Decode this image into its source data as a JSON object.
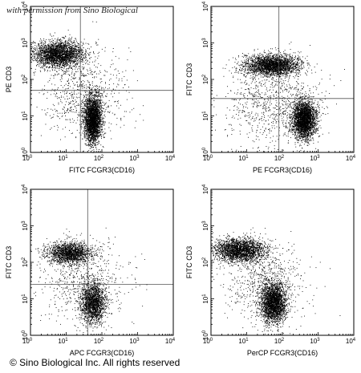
{
  "watermark": "with permission from Sino Biological",
  "copyright": "© Sino Biological Inc. All rights reserved",
  "chart_data": [
    {
      "type": "scatter",
      "xlabel": "FITC FCGR3(CD16)",
      "ylabel": "PE CD3",
      "xlim": [
        1,
        10000
      ],
      "ylim": [
        1,
        10000
      ],
      "log": true,
      "ticks": [
        {
          "b": "10",
          "e": "0"
        },
        {
          "b": "10",
          "e": "1"
        },
        {
          "b": "10",
          "e": "2"
        },
        {
          "b": "10",
          "e": "3"
        },
        {
          "b": "10",
          "e": "4"
        }
      ],
      "gate": {
        "x": 25,
        "y": 50
      },
      "populations": [
        {
          "x": 6,
          "y": 500,
          "spread_x": 0.35,
          "spread_y": 0.18,
          "n": 2600
        },
        {
          "x": 55,
          "y": 8,
          "spread_x": 0.12,
          "spread_y": 0.32,
          "n": 2900
        },
        {
          "x": 30,
          "y": 40,
          "spread_x": 0.6,
          "spread_y": 0.6,
          "n": 700
        }
      ]
    },
    {
      "type": "scatter",
      "xlabel": "PE FCGR3(CD16)",
      "ylabel": "FITC CD3",
      "xlim": [
        1,
        10000
      ],
      "ylim": [
        1,
        10000
      ],
      "log": true,
      "ticks": [
        {
          "b": "10",
          "e": "0"
        },
        {
          "b": "10",
          "e": "1"
        },
        {
          "b": "10",
          "e": "2"
        },
        {
          "b": "10",
          "e": "3"
        },
        {
          "b": "10",
          "e": "4"
        }
      ],
      "gate": {
        "x": 80,
        "y": 30
      },
      "populations": [
        {
          "x": 50,
          "y": 250,
          "spread_x": 0.38,
          "spread_y": 0.14,
          "n": 2500
        },
        {
          "x": 400,
          "y": 8,
          "spread_x": 0.16,
          "spread_y": 0.26,
          "n": 2800
        },
        {
          "x": 60,
          "y": 20,
          "spread_x": 0.7,
          "spread_y": 0.55,
          "n": 900
        }
      ]
    },
    {
      "type": "scatter",
      "xlabel": "APC FCGR3(CD16)",
      "ylabel": "FITC CD3",
      "xlim": [
        1,
        10000
      ],
      "ylim": [
        1,
        10000
      ],
      "log": true,
      "ticks": [
        {
          "b": "10",
          "e": "0"
        },
        {
          "b": "10",
          "e": "1"
        },
        {
          "b": "10",
          "e": "2"
        },
        {
          "b": "10",
          "e": "3"
        },
        {
          "b": "10",
          "e": "4"
        }
      ],
      "gate": {
        "x": 40,
        "y": 25
      },
      "populations": [
        {
          "x": 12,
          "y": 180,
          "spread_x": 0.32,
          "spread_y": 0.15,
          "n": 1700
        },
        {
          "x": 55,
          "y": 8,
          "spread_x": 0.17,
          "spread_y": 0.28,
          "n": 1800
        },
        {
          "x": 30,
          "y": 30,
          "spread_x": 0.6,
          "spread_y": 0.55,
          "n": 600
        }
      ]
    },
    {
      "type": "scatter",
      "xlabel": "PerCP FCGR3(CD16)",
      "ylabel": "FITC CD3",
      "xlim": [
        1,
        10000
      ],
      "ylim": [
        1,
        10000
      ],
      "log": true,
      "ticks": [
        {
          "b": "10",
          "e": "0"
        },
        {
          "b": "10",
          "e": "1"
        },
        {
          "b": "10",
          "e": "2"
        },
        {
          "b": "10",
          "e": "3"
        },
        {
          "b": "10",
          "e": "4"
        }
      ],
      "gate": null,
      "populations": [
        {
          "x": 6,
          "y": 220,
          "spread_x": 0.35,
          "spread_y": 0.16,
          "n": 2300
        },
        {
          "x": 55,
          "y": 8,
          "spread_x": 0.18,
          "spread_y": 0.28,
          "n": 2500
        },
        {
          "x": 30,
          "y": 30,
          "spread_x": 0.6,
          "spread_y": 0.55,
          "n": 700
        }
      ]
    }
  ]
}
